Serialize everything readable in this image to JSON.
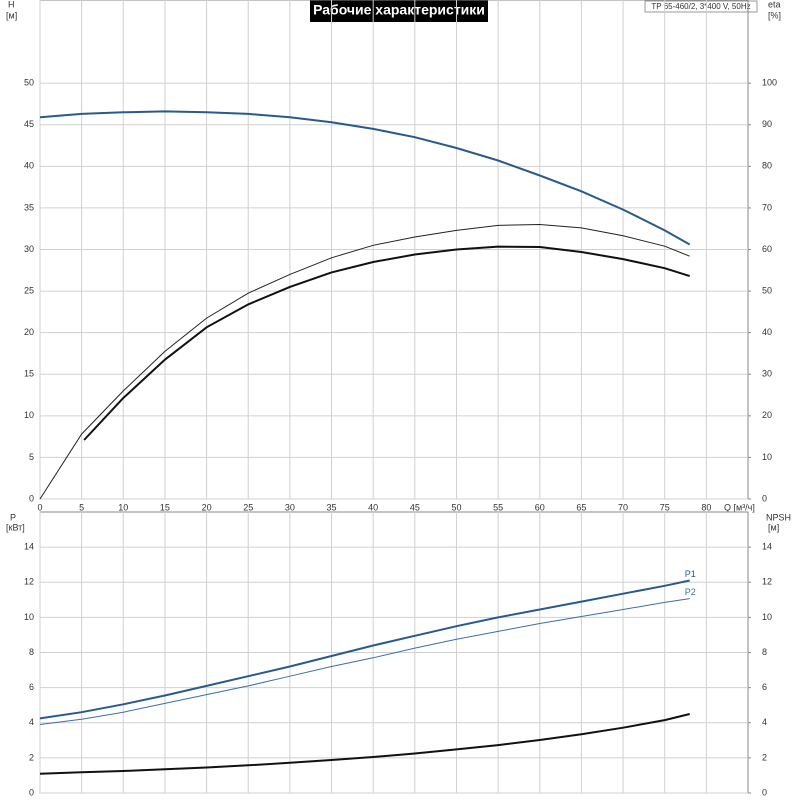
{
  "chart_data": [
    {
      "type": "line",
      "title": "Рабочие характеристики",
      "subtitle": "TP 65-460/2, 3*400 V, 50Hz",
      "xlabel": "Q [м³/ч]",
      "ylabel": "H",
      "yunit": "[м]",
      "y2label": "eta",
      "y2unit": "[%]",
      "xlim": [
        0,
        85
      ],
      "xticks": [
        0,
        5,
        10,
        15,
        20,
        25,
        30,
        35,
        40,
        45,
        50,
        55,
        60,
        65,
        70,
        75,
        80
      ],
      "ylim": [
        0,
        60
      ],
      "yticks": [
        0,
        5,
        10,
        15,
        20,
        25,
        30,
        35,
        40,
        45,
        50
      ],
      "y2lim": [
        0,
        120
      ],
      "y2ticks": [
        0,
        10,
        20,
        30,
        40,
        50,
        60,
        70,
        80,
        90,
        100
      ],
      "grid": true,
      "series": [
        {
          "color": "#2a5a8c",
          "width": 2,
          "x": [
            0,
            5,
            10,
            15,
            20,
            25,
            30,
            35,
            40,
            45,
            50,
            55,
            60,
            65,
            70,
            75,
            78
          ],
          "values": [
            45.9,
            46.3,
            46.5,
            46.6,
            46.5,
            46.3,
            45.9,
            45.3,
            44.5,
            43.5,
            42.2,
            40.7,
            38.9,
            37.0,
            34.8,
            32.3,
            30.6
          ]
        },
        {
          "color": "#222222",
          "width": 1,
          "axis": "y2",
          "x": [
            0,
            5,
            10,
            15,
            20,
            25,
            30,
            35,
            40,
            45,
            50,
            55,
            60,
            65,
            70,
            75,
            78
          ],
          "values": [
            0,
            15.6,
            26,
            35.5,
            43.5,
            49.5,
            54,
            58,
            61,
            63,
            64.6,
            65.8,
            66,
            65.2,
            63.3,
            60.8,
            58.4
          ]
        },
        {
          "color": "#111111",
          "width": 2,
          "axis": "y2",
          "x": [
            5.3,
            10,
            15,
            20,
            25,
            30,
            35,
            40,
            45,
            50,
            55,
            60,
            65,
            70,
            75,
            78
          ],
          "values": [
            14.2,
            24.3,
            33.5,
            41.3,
            46.8,
            51,
            54.5,
            57,
            58.8,
            60,
            60.7,
            60.6,
            59.4,
            57.7,
            55.5,
            53.6
          ]
        }
      ]
    },
    {
      "type": "line",
      "ylabel": "P",
      "yunit": "[кВт]",
      "y2label": "NPSH",
      "y2unit": "[м]",
      "xlim": [
        0,
        85
      ],
      "ylim": [
        0,
        16
      ],
      "yticks": [
        0,
        2,
        4,
        6,
        8,
        10,
        12,
        14
      ],
      "y2lim": [
        0,
        16
      ],
      "y2ticks": [
        0,
        2,
        4,
        6,
        8,
        10,
        12,
        14
      ],
      "grid": true,
      "series": [
        {
          "name": "P1",
          "color": "#2a5a8c",
          "width": 2,
          "x": [
            0,
            5,
            10,
            15,
            20,
            25,
            30,
            35,
            40,
            45,
            50,
            55,
            60,
            65,
            70,
            75,
            78
          ],
          "values": [
            4.25,
            4.6,
            5.05,
            5.55,
            6.1,
            6.65,
            7.2,
            7.8,
            8.4,
            8.95,
            9.5,
            10.0,
            10.45,
            10.9,
            11.35,
            11.8,
            12.1
          ]
        },
        {
          "name": "P2",
          "color": "#3a6fa8",
          "width": 1,
          "x": [
            0,
            5,
            10,
            15,
            20,
            25,
            30,
            35,
            40,
            45,
            50,
            55,
            60,
            65,
            70,
            75,
            78
          ],
          "values": [
            3.9,
            4.2,
            4.6,
            5.1,
            5.6,
            6.1,
            6.65,
            7.2,
            7.7,
            8.25,
            8.75,
            9.2,
            9.65,
            10.05,
            10.45,
            10.85,
            11.07
          ]
        },
        {
          "color": "#111111",
          "width": 2,
          "axis": "y2",
          "x": [
            0,
            5,
            10,
            15,
            20,
            25,
            30,
            35,
            40,
            45,
            50,
            55,
            60,
            65,
            70,
            75,
            78
          ],
          "values": [
            1.1,
            1.18,
            1.25,
            1.35,
            1.45,
            1.58,
            1.72,
            1.88,
            2.05,
            2.25,
            2.48,
            2.73,
            3.02,
            3.35,
            3.72,
            4.15,
            4.5
          ]
        }
      ]
    }
  ]
}
